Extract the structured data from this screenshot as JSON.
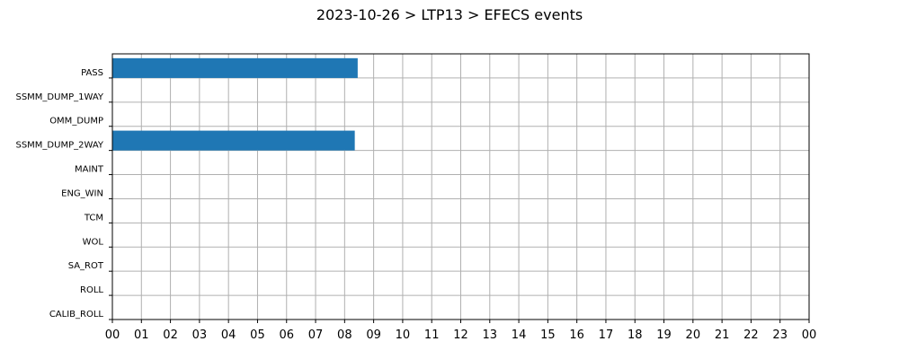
{
  "chart_data": {
    "type": "bar",
    "orientation": "horizontal",
    "title": "2023-10-26 > LTP13 > EFECS events",
    "xlabel": "",
    "ylabel": "",
    "categories": [
      "PASS",
      "SSMM_DUMP_1WAY",
      "OMM_DUMP",
      "SSMM_DUMP_2WAY",
      "MAINT",
      "ENG_WIN",
      "TCM",
      "WOL",
      "SA_ROT",
      "ROLL",
      "CALIB_ROLL"
    ],
    "series": [
      {
        "values": [
          {
            "category": "PASS",
            "start": 0.0,
            "end": 8.45
          },
          {
            "category": "SSMM_DUMP_2WAY",
            "start": 0.0,
            "end": 8.35
          }
        ]
      }
    ],
    "xlim": [
      0,
      24
    ],
    "xticks": [
      "00",
      "01",
      "02",
      "03",
      "04",
      "05",
      "06",
      "07",
      "08",
      "09",
      "10",
      "11",
      "12",
      "13",
      "14",
      "15",
      "16",
      "17",
      "18",
      "19",
      "20",
      "21",
      "22",
      "23",
      "00"
    ],
    "grid": true,
    "legend": "none",
    "bar_color": "#1f77b4"
  }
}
